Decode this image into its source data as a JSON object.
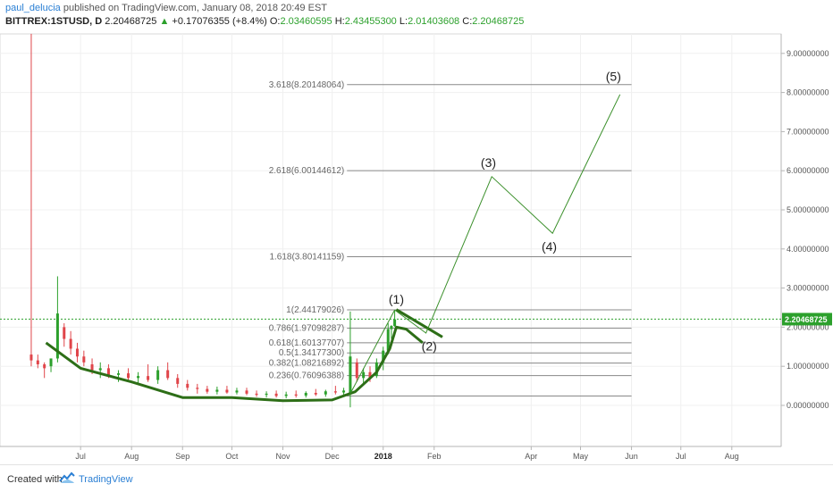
{
  "header": {
    "author": "paul_delucia",
    "published_text": "published on TradingView.com, January 08, 2018 20:49 EST",
    "symbol": "BITTREX:1STUSD, D",
    "last": "2.20468725",
    "change_arrow": "▲",
    "change": "+0.17076355 (+8.4%)",
    "o_label": "O:",
    "o_value": "2.03460595",
    "h_label": "H:",
    "h_value": "2.43455300",
    "l_label": "L:",
    "l_value": "2.01403608",
    "c_label": "C:",
    "c_value": "2.20468725"
  },
  "footer": {
    "created_with": "Created with",
    "brand": "TradingView"
  },
  "colors": {
    "up": "#2ca02c",
    "down": "#e0454a",
    "wave": "#2d6e17",
    "fib": "#888888",
    "last_price_bg": "#2ca02c"
  },
  "chart_data": {
    "type": "candlestick",
    "yaxis_ticks": [
      "9.00000000",
      "8.00000000",
      "7.00000000",
      "6.00000000",
      "5.00000000",
      "4.00000000",
      "3.00000000",
      "2.00000000",
      "1.00000000",
      "0.00000000"
    ],
    "yaxis_tick_values": [
      9,
      8,
      7,
      6,
      5,
      4,
      3,
      2,
      1,
      0
    ],
    "ylim": [
      -1,
      9.5
    ],
    "xaxis_ticks": [
      "Jul",
      "Aug",
      "Sep",
      "Oct",
      "Nov",
      "Dec",
      "2018",
      "Feb",
      "Apr",
      "May",
      "Jun",
      "Jul",
      "Aug"
    ],
    "xaxis_tick_dates": [
      "2017-07-01",
      "2017-08-01",
      "2017-09-01",
      "2017-10-01",
      "2017-11-01",
      "2017-12-01",
      "2018-01-01",
      "2018-02-01",
      "2018-04-01",
      "2018-05-01",
      "2018-06-01",
      "2018-07-01",
      "2018-08-01"
    ],
    "xlim": [
      "2017-05-13",
      "2018-08-31"
    ],
    "last_price_label": "2.20468725",
    "last_price": 2.20468725,
    "fib_levels": [
      {
        "label": "3.618(8.20148064)",
        "value": 8.20148064
      },
      {
        "label": "2.618(6.00144612)",
        "value": 6.00144612
      },
      {
        "label": "1.618(3.80141159)",
        "value": 3.80141159
      },
      {
        "label": "1(2.44179026)",
        "value": 2.44179026
      },
      {
        "label": "0.786(1.97098287)",
        "value": 1.97098287
      },
      {
        "label": "0.618(1.60137707)",
        "value": 1.60137707
      },
      {
        "label": "0.5(1.34177300)",
        "value": 1.341773
      },
      {
        "label": "0.382(1.08216892)",
        "value": 1.08216892
      },
      {
        "label": "0.236(0.76096388)",
        "value": 0.76096388
      },
      {
        "label": "",
        "value": 0.24
      }
    ],
    "fib_range": [
      "2017-12-10",
      "2018-06-01"
    ],
    "wave_labels": [
      {
        "label": "(1)",
        "date": "2018-01-09",
        "value": 2.6
      },
      {
        "label": "(2)",
        "date": "2018-01-29",
        "value": 1.4
      },
      {
        "label": "(3)",
        "date": "2018-03-06",
        "value": 6.1
      },
      {
        "label": "(4)",
        "date": "2018-04-12",
        "value": 3.95
      },
      {
        "label": "(5)",
        "date": "2018-05-21",
        "value": 8.3
      }
    ],
    "wave_path": [
      {
        "date": "2018-01-08",
        "value": 2.44
      },
      {
        "date": "2018-01-27",
        "value": 1.85
      },
      {
        "date": "2018-03-08",
        "value": 5.85
      },
      {
        "date": "2018-04-14",
        "value": 4.4
      },
      {
        "date": "2018-05-25",
        "value": 7.95
      }
    ],
    "wave1_path": [
      {
        "date": "2017-12-12",
        "value": 0.3
      },
      {
        "date": "2018-01-08",
        "value": 2.44
      }
    ],
    "base_curve": [
      {
        "date": "2017-06-10",
        "value": 1.6
      },
      {
        "date": "2017-07-01",
        "value": 0.95
      },
      {
        "date": "2017-08-01",
        "value": 0.6
      },
      {
        "date": "2017-09-01",
        "value": 0.2
      },
      {
        "date": "2017-10-01",
        "value": 0.2
      },
      {
        "date": "2017-11-01",
        "value": 0.12
      },
      {
        "date": "2017-12-01",
        "value": 0.14
      },
      {
        "date": "2017-12-15",
        "value": 0.35
      },
      {
        "date": "2017-12-28",
        "value": 0.85
      },
      {
        "date": "2018-01-05",
        "value": 1.45
      },
      {
        "date": "2018-01-09",
        "value": 2.0
      },
      {
        "date": "2018-01-15",
        "value": 1.95
      },
      {
        "date": "2018-01-25",
        "value": 1.6
      }
    ],
    "channel_line": [
      {
        "date": "2018-01-09",
        "value": 2.45
      },
      {
        "date": "2018-02-06",
        "value": 1.75
      }
    ],
    "candles": [
      {
        "date": "2017-06-01",
        "open": 1.3,
        "high": 9.5,
        "low": 1.0,
        "close": 1.15
      },
      {
        "date": "2017-06-05",
        "open": 1.15,
        "high": 1.3,
        "low": 0.95,
        "close": 1.05
      },
      {
        "date": "2017-06-09",
        "open": 1.05,
        "high": 1.1,
        "low": 0.7,
        "close": 0.95
      },
      {
        "date": "2017-06-13",
        "open": 1.0,
        "high": 1.2,
        "low": 0.85,
        "close": 1.2
      },
      {
        "date": "2017-06-17",
        "open": 1.2,
        "high": 3.3,
        "low": 1.1,
        "close": 2.35
      },
      {
        "date": "2017-06-21",
        "open": 2.0,
        "high": 2.1,
        "low": 1.5,
        "close": 1.7
      },
      {
        "date": "2017-06-25",
        "open": 1.7,
        "high": 1.9,
        "low": 1.3,
        "close": 1.45
      },
      {
        "date": "2017-06-29",
        "open": 1.45,
        "high": 1.6,
        "low": 1.1,
        "close": 1.25
      },
      {
        "date": "2017-07-03",
        "open": 1.25,
        "high": 1.4,
        "low": 1.0,
        "close": 1.1
      },
      {
        "date": "2017-07-08",
        "open": 1.05,
        "high": 1.2,
        "low": 0.8,
        "close": 0.9
      },
      {
        "date": "2017-07-13",
        "open": 0.9,
        "high": 1.1,
        "low": 0.7,
        "close": 0.95
      },
      {
        "date": "2017-07-18",
        "open": 0.95,
        "high": 1.05,
        "low": 0.7,
        "close": 0.78
      },
      {
        "date": "2017-07-24",
        "open": 0.78,
        "high": 0.9,
        "low": 0.6,
        "close": 0.82
      },
      {
        "date": "2017-07-30",
        "open": 0.82,
        "high": 0.95,
        "low": 0.62,
        "close": 0.7
      },
      {
        "date": "2017-08-05",
        "open": 0.7,
        "high": 0.85,
        "low": 0.55,
        "close": 0.75
      },
      {
        "date": "2017-08-11",
        "open": 0.75,
        "high": 1.05,
        "low": 0.6,
        "close": 0.65
      },
      {
        "date": "2017-08-17",
        "open": 0.65,
        "high": 1.0,
        "low": 0.55,
        "close": 0.9
      },
      {
        "date": "2017-08-23",
        "open": 0.9,
        "high": 1.1,
        "low": 0.65,
        "close": 0.7
      },
      {
        "date": "2017-08-29",
        "open": 0.7,
        "high": 0.8,
        "low": 0.45,
        "close": 0.55
      },
      {
        "date": "2017-09-04",
        "open": 0.55,
        "high": 0.65,
        "low": 0.38,
        "close": 0.45
      },
      {
        "date": "2017-09-10",
        "open": 0.45,
        "high": 0.55,
        "low": 0.3,
        "close": 0.42
      },
      {
        "date": "2017-09-16",
        "open": 0.42,
        "high": 0.5,
        "low": 0.3,
        "close": 0.35
      },
      {
        "date": "2017-09-22",
        "open": 0.35,
        "high": 0.48,
        "low": 0.28,
        "close": 0.4
      },
      {
        "date": "2017-09-28",
        "open": 0.4,
        "high": 0.5,
        "low": 0.3,
        "close": 0.33
      },
      {
        "date": "2017-10-04",
        "open": 0.33,
        "high": 0.45,
        "low": 0.28,
        "close": 0.38
      },
      {
        "date": "2017-10-10",
        "open": 0.38,
        "high": 0.45,
        "low": 0.26,
        "close": 0.3
      },
      {
        "date": "2017-10-16",
        "open": 0.3,
        "high": 0.38,
        "low": 0.22,
        "close": 0.27
      },
      {
        "date": "2017-10-22",
        "open": 0.27,
        "high": 0.36,
        "low": 0.2,
        "close": 0.3
      },
      {
        "date": "2017-10-28",
        "open": 0.3,
        "high": 0.38,
        "low": 0.2,
        "close": 0.24
      },
      {
        "date": "2017-11-03",
        "open": 0.24,
        "high": 0.35,
        "low": 0.18,
        "close": 0.28
      },
      {
        "date": "2017-11-09",
        "open": 0.28,
        "high": 0.38,
        "low": 0.2,
        "close": 0.25
      },
      {
        "date": "2017-11-15",
        "open": 0.25,
        "high": 0.36,
        "low": 0.2,
        "close": 0.32
      },
      {
        "date": "2017-11-21",
        "open": 0.32,
        "high": 0.42,
        "low": 0.24,
        "close": 0.28
      },
      {
        "date": "2017-11-27",
        "open": 0.28,
        "high": 0.4,
        "low": 0.22,
        "close": 0.36
      },
      {
        "date": "2017-12-03",
        "open": 0.36,
        "high": 0.5,
        "low": 0.28,
        "close": 0.33
      },
      {
        "date": "2017-12-08",
        "open": 0.33,
        "high": 0.45,
        "low": 0.25,
        "close": 0.38
      },
      {
        "date": "2017-12-12",
        "open": 0.3,
        "high": 2.4,
        "low": -0.05,
        "close": 1.25
      },
      {
        "date": "2017-12-16",
        "open": 1.1,
        "high": 1.2,
        "low": 0.6,
        "close": 0.7
      },
      {
        "date": "2017-12-20",
        "open": 0.7,
        "high": 0.95,
        "low": 0.55,
        "close": 0.85
      },
      {
        "date": "2017-12-24",
        "open": 0.85,
        "high": 1.0,
        "low": 0.6,
        "close": 0.7
      },
      {
        "date": "2017-12-28",
        "open": 0.75,
        "high": 1.2,
        "low": 0.7,
        "close": 1.1
      },
      {
        "date": "2018-01-01",
        "open": 1.1,
        "high": 1.5,
        "low": 0.9,
        "close": 1.4
      },
      {
        "date": "2018-01-04",
        "open": 1.4,
        "high": 2.1,
        "low": 1.3,
        "close": 1.95
      },
      {
        "date": "2018-01-06",
        "open": 1.95,
        "high": 2.05,
        "low": 1.7,
        "close": 2.03
      },
      {
        "date": "2018-01-08",
        "open": 2.03,
        "high": 2.43,
        "low": 2.01,
        "close": 2.2
      }
    ]
  }
}
